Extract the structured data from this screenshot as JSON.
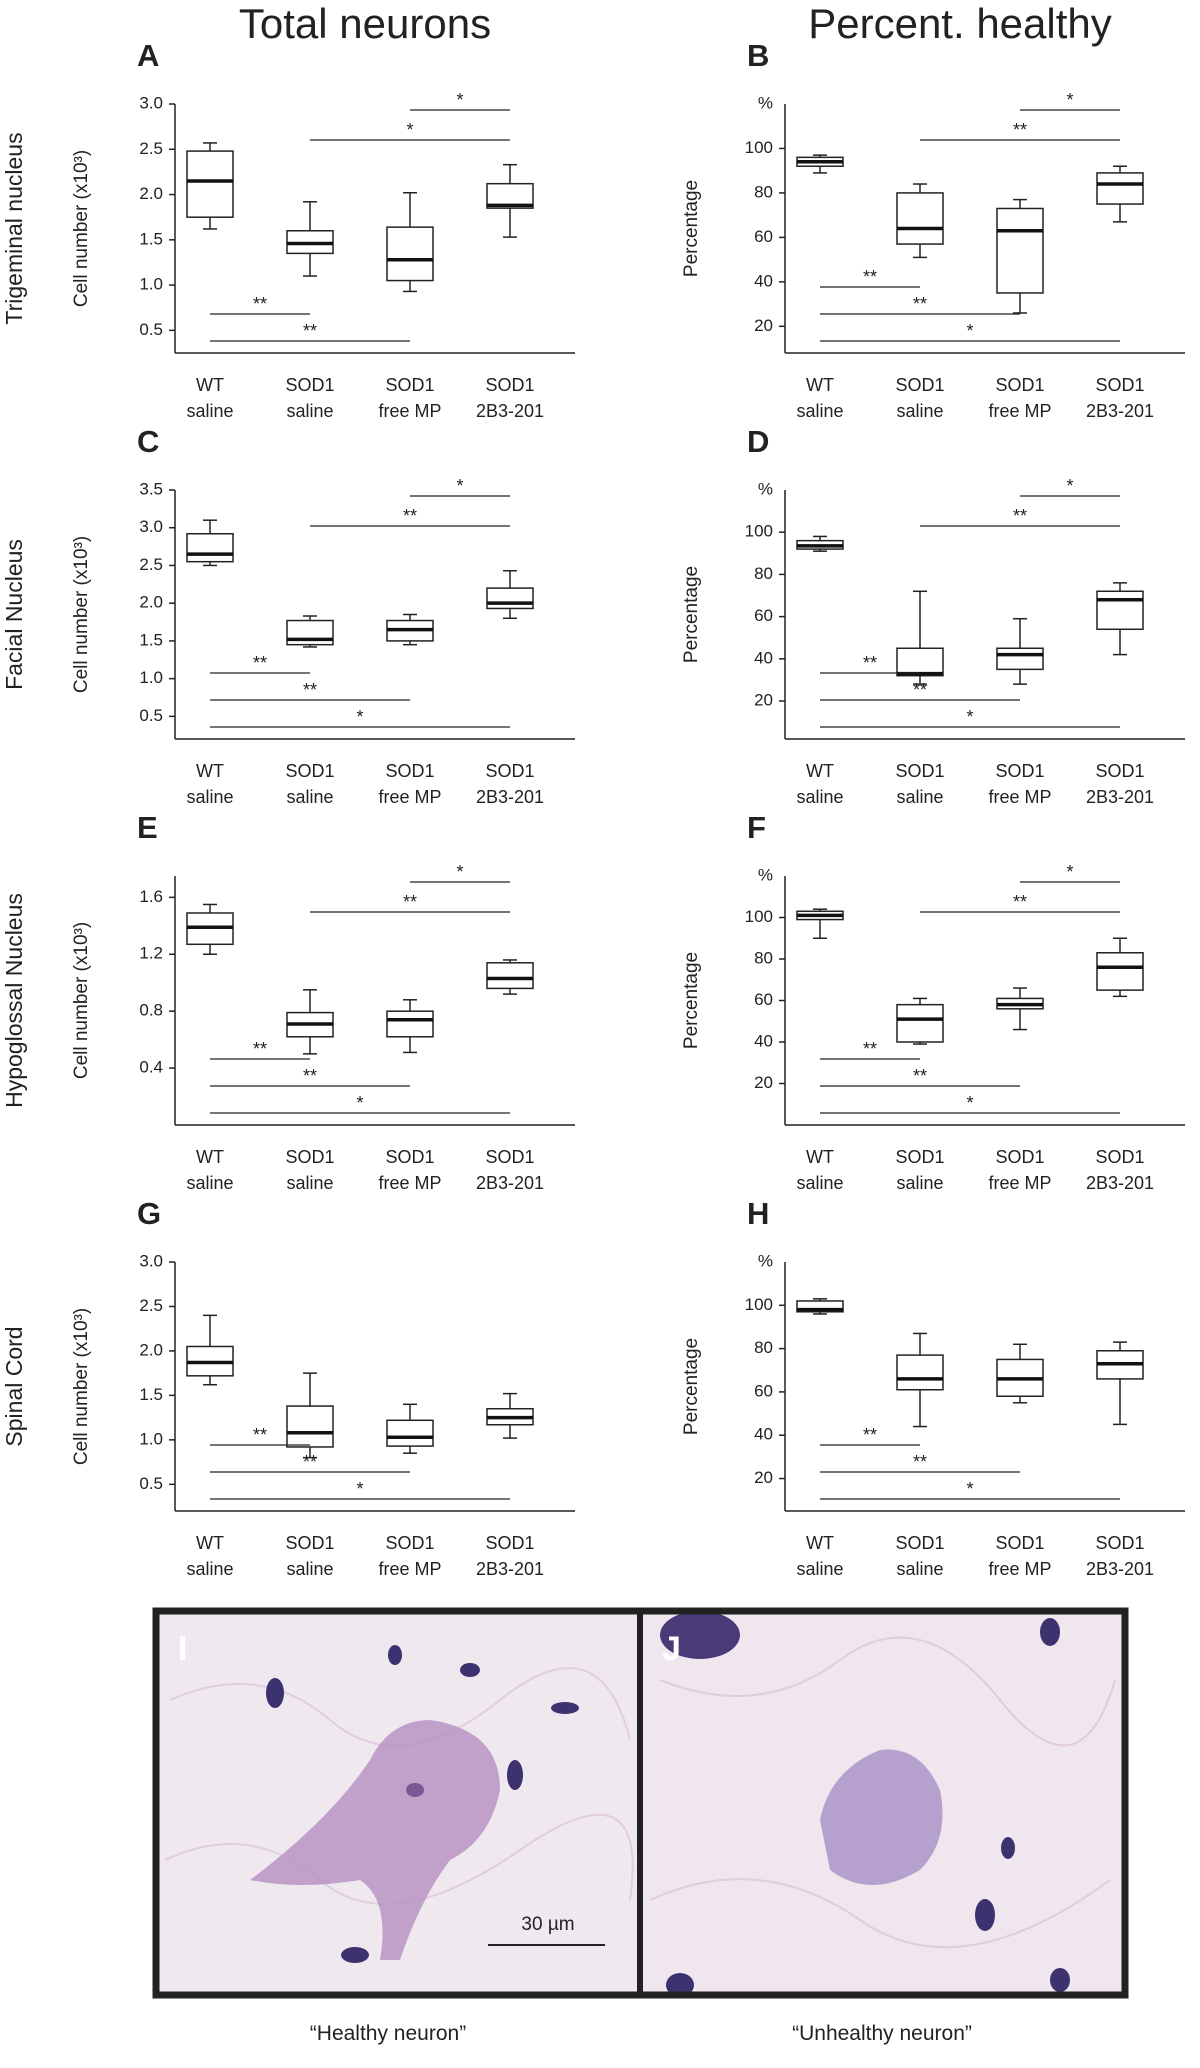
{
  "column_titles": [
    "Total neurons",
    "Percent. healthy"
  ],
  "chart_data": [
    {
      "type": "box",
      "panel": "A",
      "row_label": "Trigeminal nucleus",
      "ylabel": "Cell number (x10³)",
      "categories": [
        [
          "WT",
          "saline"
        ],
        [
          "SOD1",
          "saline"
        ],
        [
          "SOD1",
          "free MP"
        ],
        [
          "SOD1",
          "2B3-201"
        ]
      ],
      "boxes": [
        {
          "min": 1.62,
          "q1": 1.75,
          "median": 2.15,
          "q3": 2.48,
          "max": 2.57
        },
        {
          "min": 1.1,
          "q1": 1.35,
          "median": 1.46,
          "q3": 1.6,
          "max": 1.92
        },
        {
          "min": 0.93,
          "q1": 1.05,
          "median": 1.28,
          "q3": 1.64,
          "max": 2.02
        },
        {
          "min": 1.53,
          "q1": 1.85,
          "median": 1.88,
          "q3": 2.12,
          "max": 2.33
        }
      ],
      "ylim": [
        0.25,
        3.0
      ],
      "yticks": [
        0.5,
        {
          "value": 1,
          "label": "1.0"
        },
        1.5,
        {
          "value": 2,
          "label": "2.0"
        },
        2.5,
        {
          "value": 3,
          "label": "3.0"
        }
      ],
      "comparisons": [
        {
          "groups": [
            2,
            3
          ],
          "label": "*"
        },
        {
          "groups": [
            1,
            3
          ],
          "label": "*"
        },
        {
          "groups": [
            0,
            1
          ],
          "label": "**"
        },
        {
          "groups": [
            0,
            2
          ],
          "label": "**"
        }
      ]
    },
    {
      "type": "box",
      "panel": "B",
      "unit": "%",
      "ylabel": "Percentage",
      "categories": [
        [
          "WT",
          "saline"
        ],
        [
          "SOD1",
          "saline"
        ],
        [
          "SOD1",
          "free MP"
        ],
        [
          "SOD1",
          "2B3-201"
        ]
      ],
      "boxes": [
        {
          "min": 89,
          "q1": 92,
          "median": 94,
          "q3": 96,
          "max": 97
        },
        {
          "min": 51,
          "q1": 57,
          "median": 64,
          "q3": 80,
          "max": 84
        },
        {
          "min": 26,
          "q1": 35,
          "median": 63,
          "q3": 73,
          "max": 77
        },
        {
          "min": 67,
          "q1": 75,
          "median": 84,
          "q3": 89,
          "max": 92
        }
      ],
      "ylim": [
        8,
        120
      ],
      "yticks": [
        20,
        40,
        60,
        80,
        100
      ],
      "comparisons": [
        {
          "groups": [
            2,
            3
          ],
          "label": "*"
        },
        {
          "groups": [
            1,
            3
          ],
          "label": "**"
        },
        {
          "groups": [
            0,
            1
          ],
          "label": "**"
        },
        {
          "groups": [
            0,
            2
          ],
          "label": "**"
        },
        {
          "groups": [
            0,
            3
          ],
          "label": "*"
        }
      ]
    },
    {
      "type": "box",
      "panel": "C",
      "row_label": "Facial Nucleus",
      "ylabel": "Cell number (x10³)",
      "categories": [
        [
          "WT",
          "saline"
        ],
        [
          "SOD1",
          "saline"
        ],
        [
          "SOD1",
          "free MP"
        ],
        [
          "SOD1",
          "2B3-201"
        ]
      ],
      "boxes": [
        {
          "min": 2.5,
          "q1": 2.55,
          "median": 2.65,
          "q3": 2.92,
          "max": 3.1
        },
        {
          "min": 1.42,
          "q1": 1.45,
          "median": 1.52,
          "q3": 1.77,
          "max": 1.83
        },
        {
          "min": 1.45,
          "q1": 1.5,
          "median": 1.65,
          "q3": 1.77,
          "max": 1.85
        },
        {
          "min": 1.8,
          "q1": 1.93,
          "median": 2.0,
          "q3": 2.2,
          "max": 2.43
        }
      ],
      "ylim": [
        0.2,
        3.5
      ],
      "yticks": [
        0.5,
        {
          "value": 1,
          "label": "1.0"
        },
        1.5,
        {
          "value": 2,
          "label": "2.0"
        },
        2.5,
        {
          "value": 3,
          "label": "3.0"
        },
        3.5
      ],
      "comparisons": [
        {
          "groups": [
            2,
            3
          ],
          "label": "*"
        },
        {
          "groups": [
            1,
            3
          ],
          "label": "**"
        },
        {
          "groups": [
            0,
            1
          ],
          "label": "**"
        },
        {
          "groups": [
            0,
            2
          ],
          "label": "**"
        },
        {
          "groups": [
            0,
            3
          ],
          "label": "*"
        }
      ]
    },
    {
      "type": "box",
      "panel": "D",
      "unit": "%",
      "ylabel": "Percentage",
      "categories": [
        [
          "WT",
          "saline"
        ],
        [
          "SOD1",
          "saline"
        ],
        [
          "SOD1",
          "free MP"
        ],
        [
          "SOD1",
          "2B3-201"
        ]
      ],
      "boxes": [
        {
          "min": 91,
          "q1": 92,
          "median": 93.5,
          "q3": 96,
          "max": 98
        },
        {
          "min": 28,
          "q1": 32,
          "median": 33,
          "q3": 45,
          "max": 72
        },
        {
          "min": 28,
          "q1": 35,
          "median": 42,
          "q3": 45,
          "max": 59
        },
        {
          "min": 42,
          "q1": 54,
          "median": 68,
          "q3": 72,
          "max": 76
        }
      ],
      "ylim": [
        2,
        120
      ],
      "yticks": [
        20,
        40,
        60,
        80,
        100
      ],
      "comparisons": [
        {
          "groups": [
            2,
            3
          ],
          "label": "*"
        },
        {
          "groups": [
            1,
            3
          ],
          "label": "**"
        },
        {
          "groups": [
            0,
            1
          ],
          "label": "**"
        },
        {
          "groups": [
            0,
            2
          ],
          "label": "**"
        },
        {
          "groups": [
            0,
            3
          ],
          "label": "*"
        }
      ]
    },
    {
      "type": "box",
      "panel": "E",
      "row_label": "Hypoglossal Nucleus",
      "ylabel": "Cell number (x10³)",
      "categories": [
        [
          "WT",
          "saline"
        ],
        [
          "SOD1",
          "saline"
        ],
        [
          "SOD1",
          "free MP"
        ],
        [
          "SOD1",
          "2B3-201"
        ]
      ],
      "boxes": [
        {
          "min": 1.2,
          "q1": 1.27,
          "median": 1.39,
          "q3": 1.49,
          "max": 1.55
        },
        {
          "min": 0.5,
          "q1": 0.62,
          "median": 0.71,
          "q3": 0.79,
          "max": 0.95
        },
        {
          "min": 0.51,
          "q1": 0.62,
          "median": 0.74,
          "q3": 0.8,
          "max": 0.88
        },
        {
          "min": 0.92,
          "q1": 0.96,
          "median": 1.03,
          "q3": 1.14,
          "max": 1.16
        }
      ],
      "ylim": [
        0,
        1.75
      ],
      "yticks": [
        0.4,
        0.8,
        1.2,
        1.6
      ],
      "comparisons": [
        {
          "groups": [
            2,
            3
          ],
          "label": "*"
        },
        {
          "groups": [
            1,
            3
          ],
          "label": "**"
        },
        {
          "groups": [
            0,
            1
          ],
          "label": "**"
        },
        {
          "groups": [
            0,
            2
          ],
          "label": "**"
        },
        {
          "groups": [
            0,
            3
          ],
          "label": "*"
        }
      ]
    },
    {
      "type": "box",
      "panel": "F",
      "unit": "%",
      "ylabel": "Percentage",
      "categories": [
        [
          "WT",
          "saline"
        ],
        [
          "SOD1",
          "saline"
        ],
        [
          "SOD1",
          "free MP"
        ],
        [
          "SOD1",
          "2B3-201"
        ]
      ],
      "boxes": [
        {
          "min": 90,
          "q1": 99,
          "median": 101,
          "q3": 103,
          "max": 104
        },
        {
          "min": 39,
          "q1": 40,
          "median": 51,
          "q3": 58,
          "max": 61
        },
        {
          "min": 46,
          "q1": 56,
          "median": 58,
          "q3": 61,
          "max": 66
        },
        {
          "min": 62,
          "q1": 65,
          "median": 76,
          "q3": 83,
          "max": 90
        }
      ],
      "ylim": [
        0,
        120
      ],
      "yticks": [
        20,
        40,
        60,
        80,
        100
      ],
      "comparisons": [
        {
          "groups": [
            2,
            3
          ],
          "label": "*"
        },
        {
          "groups": [
            1,
            3
          ],
          "label": "**"
        },
        {
          "groups": [
            0,
            1
          ],
          "label": "**"
        },
        {
          "groups": [
            0,
            2
          ],
          "label": "**"
        },
        {
          "groups": [
            0,
            3
          ],
          "label": "*"
        }
      ]
    },
    {
      "type": "box",
      "panel": "G",
      "row_label": "Spinal Cord",
      "ylabel": "Cell number (x10³)",
      "categories": [
        [
          "WT",
          "saline"
        ],
        [
          "SOD1",
          "saline"
        ],
        [
          "SOD1",
          "free MP"
        ],
        [
          "SOD1",
          "2B3-201"
        ]
      ],
      "boxes": [
        {
          "min": 1.62,
          "q1": 1.72,
          "median": 1.87,
          "q3": 2.05,
          "max": 2.4
        },
        {
          "min": 0.8,
          "q1": 0.92,
          "median": 1.08,
          "q3": 1.38,
          "max": 1.75
        },
        {
          "min": 0.85,
          "q1": 0.93,
          "median": 1.03,
          "q3": 1.22,
          "max": 1.4
        },
        {
          "min": 1.02,
          "q1": 1.17,
          "median": 1.25,
          "q3": 1.35,
          "max": 1.52
        }
      ],
      "ylim": [
        0.2,
        3.0
      ],
      "yticks": [
        0.5,
        {
          "value": 1,
          "label": "1.0"
        },
        1.5,
        {
          "value": 2,
          "label": "2.0"
        },
        2.5,
        {
          "value": 3,
          "label": "3.0"
        }
      ],
      "comparisons": [
        {
          "groups": [
            0,
            1
          ],
          "label": "**"
        },
        {
          "groups": [
            0,
            2
          ],
          "label": "**"
        },
        {
          "groups": [
            0,
            3
          ],
          "label": "*"
        }
      ]
    },
    {
      "type": "box",
      "panel": "H",
      "unit": "%",
      "ylabel": "Percentage",
      "categories": [
        [
          "WT",
          "saline"
        ],
        [
          "SOD1",
          "saline"
        ],
        [
          "SOD1",
          "free MP"
        ],
        [
          "SOD1",
          "2B3-201"
        ]
      ],
      "boxes": [
        {
          "min": 96,
          "q1": 97,
          "median": 98,
          "q3": 102,
          "max": 103
        },
        {
          "min": 44,
          "q1": 61,
          "median": 66,
          "q3": 77,
          "max": 87
        },
        {
          "min": 55,
          "q1": 58,
          "median": 66,
          "q3": 75,
          "max": 82
        },
        {
          "min": 45,
          "q1": 66,
          "median": 73,
          "q3": 79,
          "max": 83
        }
      ],
      "ylim": [
        5,
        120
      ],
      "yticks": [
        20,
        40,
        60,
        80,
        100
      ],
      "comparisons": [
        {
          "groups": [
            0,
            1
          ],
          "label": "**"
        },
        {
          "groups": [
            0,
            2
          ],
          "label": "**"
        },
        {
          "groups": [
            0,
            3
          ],
          "label": "*"
        }
      ]
    }
  ],
  "micrographs": [
    {
      "panel": "I",
      "caption": "“Healthy neuron”",
      "scale_bar": "30 µm"
    },
    {
      "panel": "J",
      "caption": "“Unhealthy neuron”"
    }
  ]
}
